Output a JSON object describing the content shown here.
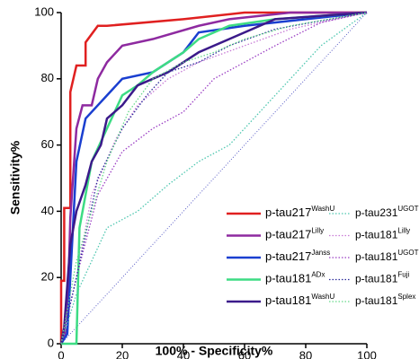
{
  "chart_data": {
    "type": "line",
    "x_label": "100% - Specificity%",
    "y_label": "Sensitivity%",
    "xlim": [
      0,
      100
    ],
    "ylim": [
      0,
      100
    ],
    "xticks": [
      0,
      20,
      40,
      60,
      80,
      100
    ],
    "yticks": [
      0,
      20,
      40,
      60,
      80,
      100
    ],
    "reference_color": "#5b5fc7",
    "series": [
      {
        "name": "p-tau217",
        "superscript": "WashU",
        "color": "#e02020",
        "style": "solid",
        "x": [
          0,
          0,
          1,
          1,
          3,
          3,
          5,
          8,
          8,
          12,
          15,
          40,
          60,
          100
        ],
        "values": [
          0,
          19,
          19,
          41,
          41,
          76,
          84,
          84,
          91,
          96,
          96,
          98,
          100,
          100
        ]
      },
      {
        "name": "p-tau217",
        "superscript": "Lilly",
        "color": "#8e2aa0",
        "style": "solid",
        "x": [
          0,
          2,
          3,
          5,
          7,
          10,
          12,
          15,
          20,
          30,
          45,
          55,
          75,
          100
        ],
        "values": [
          0,
          5,
          38,
          65,
          72,
          72,
          80,
          85,
          90,
          92,
          96,
          98,
          100,
          100
        ]
      },
      {
        "name": "p-tau217",
        "superscript": "Janss",
        "color": "#1a3fd0",
        "style": "solid",
        "x": [
          0,
          2,
          3,
          5,
          8,
          12,
          15,
          20,
          30,
          40,
          45,
          60,
          80,
          100
        ],
        "values": [
          0,
          3,
          20,
          55,
          68,
          72,
          75,
          80,
          82,
          88,
          94,
          96,
          98,
          100
        ]
      },
      {
        "name": "p-tau181",
        "superscript": "ADx",
        "color": "#3ddc84",
        "style": "solid",
        "x": [
          0,
          5,
          6,
          10,
          15,
          20,
          25,
          30,
          40,
          45,
          55,
          70,
          100
        ],
        "values": [
          0,
          0,
          35,
          55,
          65,
          75,
          78,
          82,
          88,
          92,
          96,
          98,
          100
        ]
      },
      {
        "name": "p-tau181",
        "superscript": "WashU",
        "color": "#3b1a8a",
        "style": "solid",
        "x": [
          0,
          1,
          3,
          5,
          8,
          10,
          13,
          15,
          20,
          25,
          35,
          45,
          55,
          70,
          100
        ],
        "values": [
          0,
          5,
          30,
          40,
          48,
          55,
          60,
          68,
          72,
          78,
          82,
          88,
          92,
          98,
          100
        ]
      },
      {
        "name": "p-tau231",
        "superscript": "UGOT",
        "color": "#4fc7b0",
        "style": "dotted",
        "x": [
          0,
          5,
          15,
          25,
          35,
          45,
          55,
          65,
          75,
          85,
          100
        ],
        "values": [
          0,
          15,
          35,
          40,
          48,
          55,
          60,
          70,
          80,
          90,
          100
        ]
      },
      {
        "name": "p-tau181",
        "superscript": "Lilly",
        "color": "#c77ad6",
        "style": "dotted",
        "x": [
          0,
          5,
          10,
          18,
          25,
          35,
          45,
          60,
          75,
          100
        ],
        "values": [
          0,
          20,
          45,
          62,
          72,
          80,
          85,
          90,
          95,
          100
        ]
      },
      {
        "name": "p-tau181",
        "superscript": "UGOT",
        "color": "#9b3fc4",
        "style": "dotted",
        "x": [
          0,
          5,
          12,
          20,
          30,
          40,
          50,
          60,
          70,
          85,
          100
        ],
        "values": [
          0,
          20,
          45,
          58,
          65,
          70,
          80,
          85,
          90,
          97,
          100
        ]
      },
      {
        "name": "p-tau181",
        "superscript": "Fuji",
        "color": "#2a2a9a",
        "style": "dotted",
        "x": [
          0,
          5,
          12,
          20,
          28,
          35,
          45,
          55,
          70,
          100
        ],
        "values": [
          0,
          20,
          50,
          65,
          75,
          82,
          85,
          90,
          95,
          100
        ]
      },
      {
        "name": "p-tau181",
        "superscript": "Splex",
        "color": "#66d98a",
        "style": "dotted",
        "x": [
          0,
          5,
          15,
          22,
          30,
          40,
          50,
          60,
          75,
          100
        ],
        "values": [
          0,
          25,
          55,
          70,
          80,
          85,
          88,
          92,
          96,
          100
        ]
      }
    ]
  }
}
